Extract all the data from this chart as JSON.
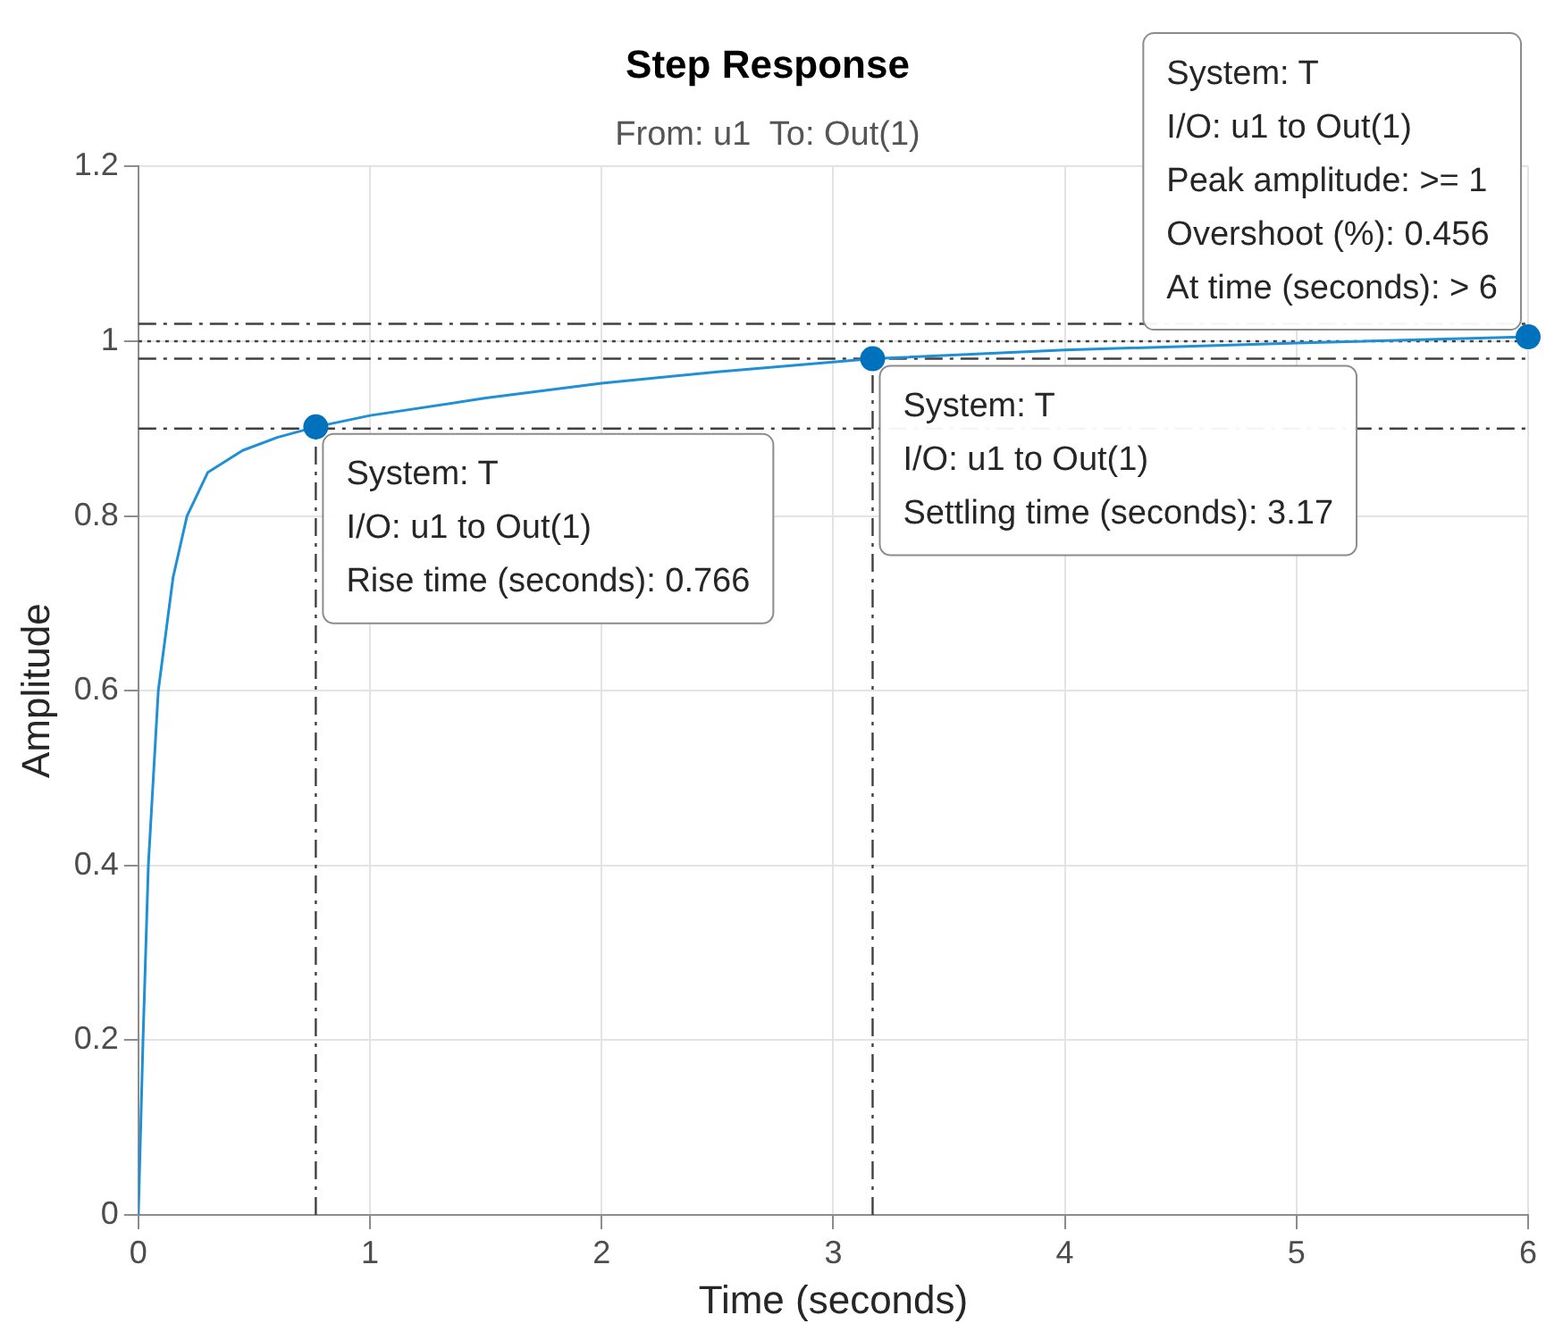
{
  "chart_data": {
    "type": "line",
    "title": "Step Response",
    "subtitle": "From: u1  To: Out(1)",
    "xlabel": "Time (seconds)",
    "ylabel": "Amplitude",
    "xlim": [
      0,
      6
    ],
    "xticks": [
      0,
      1,
      2,
      3,
      4,
      5,
      6
    ],
    "ylim": [
      0,
      1.2
    ],
    "yticks": [
      0,
      0.2,
      0.4,
      0.6,
      0.8,
      1,
      1.2
    ],
    "grid": true,
    "legend": false,
    "marker": "none",
    "line_style": "solid",
    "series": [
      {
        "color": "#1f8fd6",
        "x": [
          0,
          0.01,
          0.02,
          0.043,
          0.086,
          0.15,
          0.21,
          0.3,
          0.45,
          0.6,
          0.766,
          1,
          1.5,
          2,
          2.5,
          3.17,
          4,
          5,
          6
        ],
        "values": [
          0,
          0.1,
          0.2,
          0.4,
          0.6,
          0.73,
          0.8,
          0.85,
          0.875,
          0.89,
          0.902,
          0.915,
          0.935,
          0.952,
          0.965,
          0.98,
          0.99,
          0.998,
          1.005
        ]
      }
    ],
    "ref_lines": [
      {
        "axis": "y",
        "value": 1.02,
        "color": "#404040",
        "line_style": "dashed"
      },
      {
        "axis": "y",
        "value": 1,
        "color": "#404040",
        "line_style": "dotted"
      },
      {
        "axis": "y",
        "value": 0.98,
        "color": "#404040",
        "line_style": "dashed"
      },
      {
        "axis": "y",
        "value": 0.9,
        "color": "#404040",
        "line_style": "dashed"
      },
      {
        "axis": "x",
        "value": 0.766,
        "color": "#404040",
        "line_style": "dashed"
      },
      {
        "axis": "x",
        "value": 3.17,
        "color": "#404040",
        "line_style": "dashed"
      }
    ],
    "annotations": [
      {
        "text": "System: T\nI/O: u1 to Out(1)\nRise time (seconds): 0.766",
        "x": 0.766,
        "y": 0.902
      },
      {
        "text": "System: T\nI/O: u1 to Out(1)\nSettling time (seconds): 3.17",
        "x": 3.17,
        "y": 0.98
      },
      {
        "text": "System: T\nI/O: u1 to Out(1)\nPeak amplitude: >= 1\nOvershoot (%): 0.456\nAt time (seconds): > 6",
        "x": 6,
        "y": 1.005
      }
    ]
  }
}
